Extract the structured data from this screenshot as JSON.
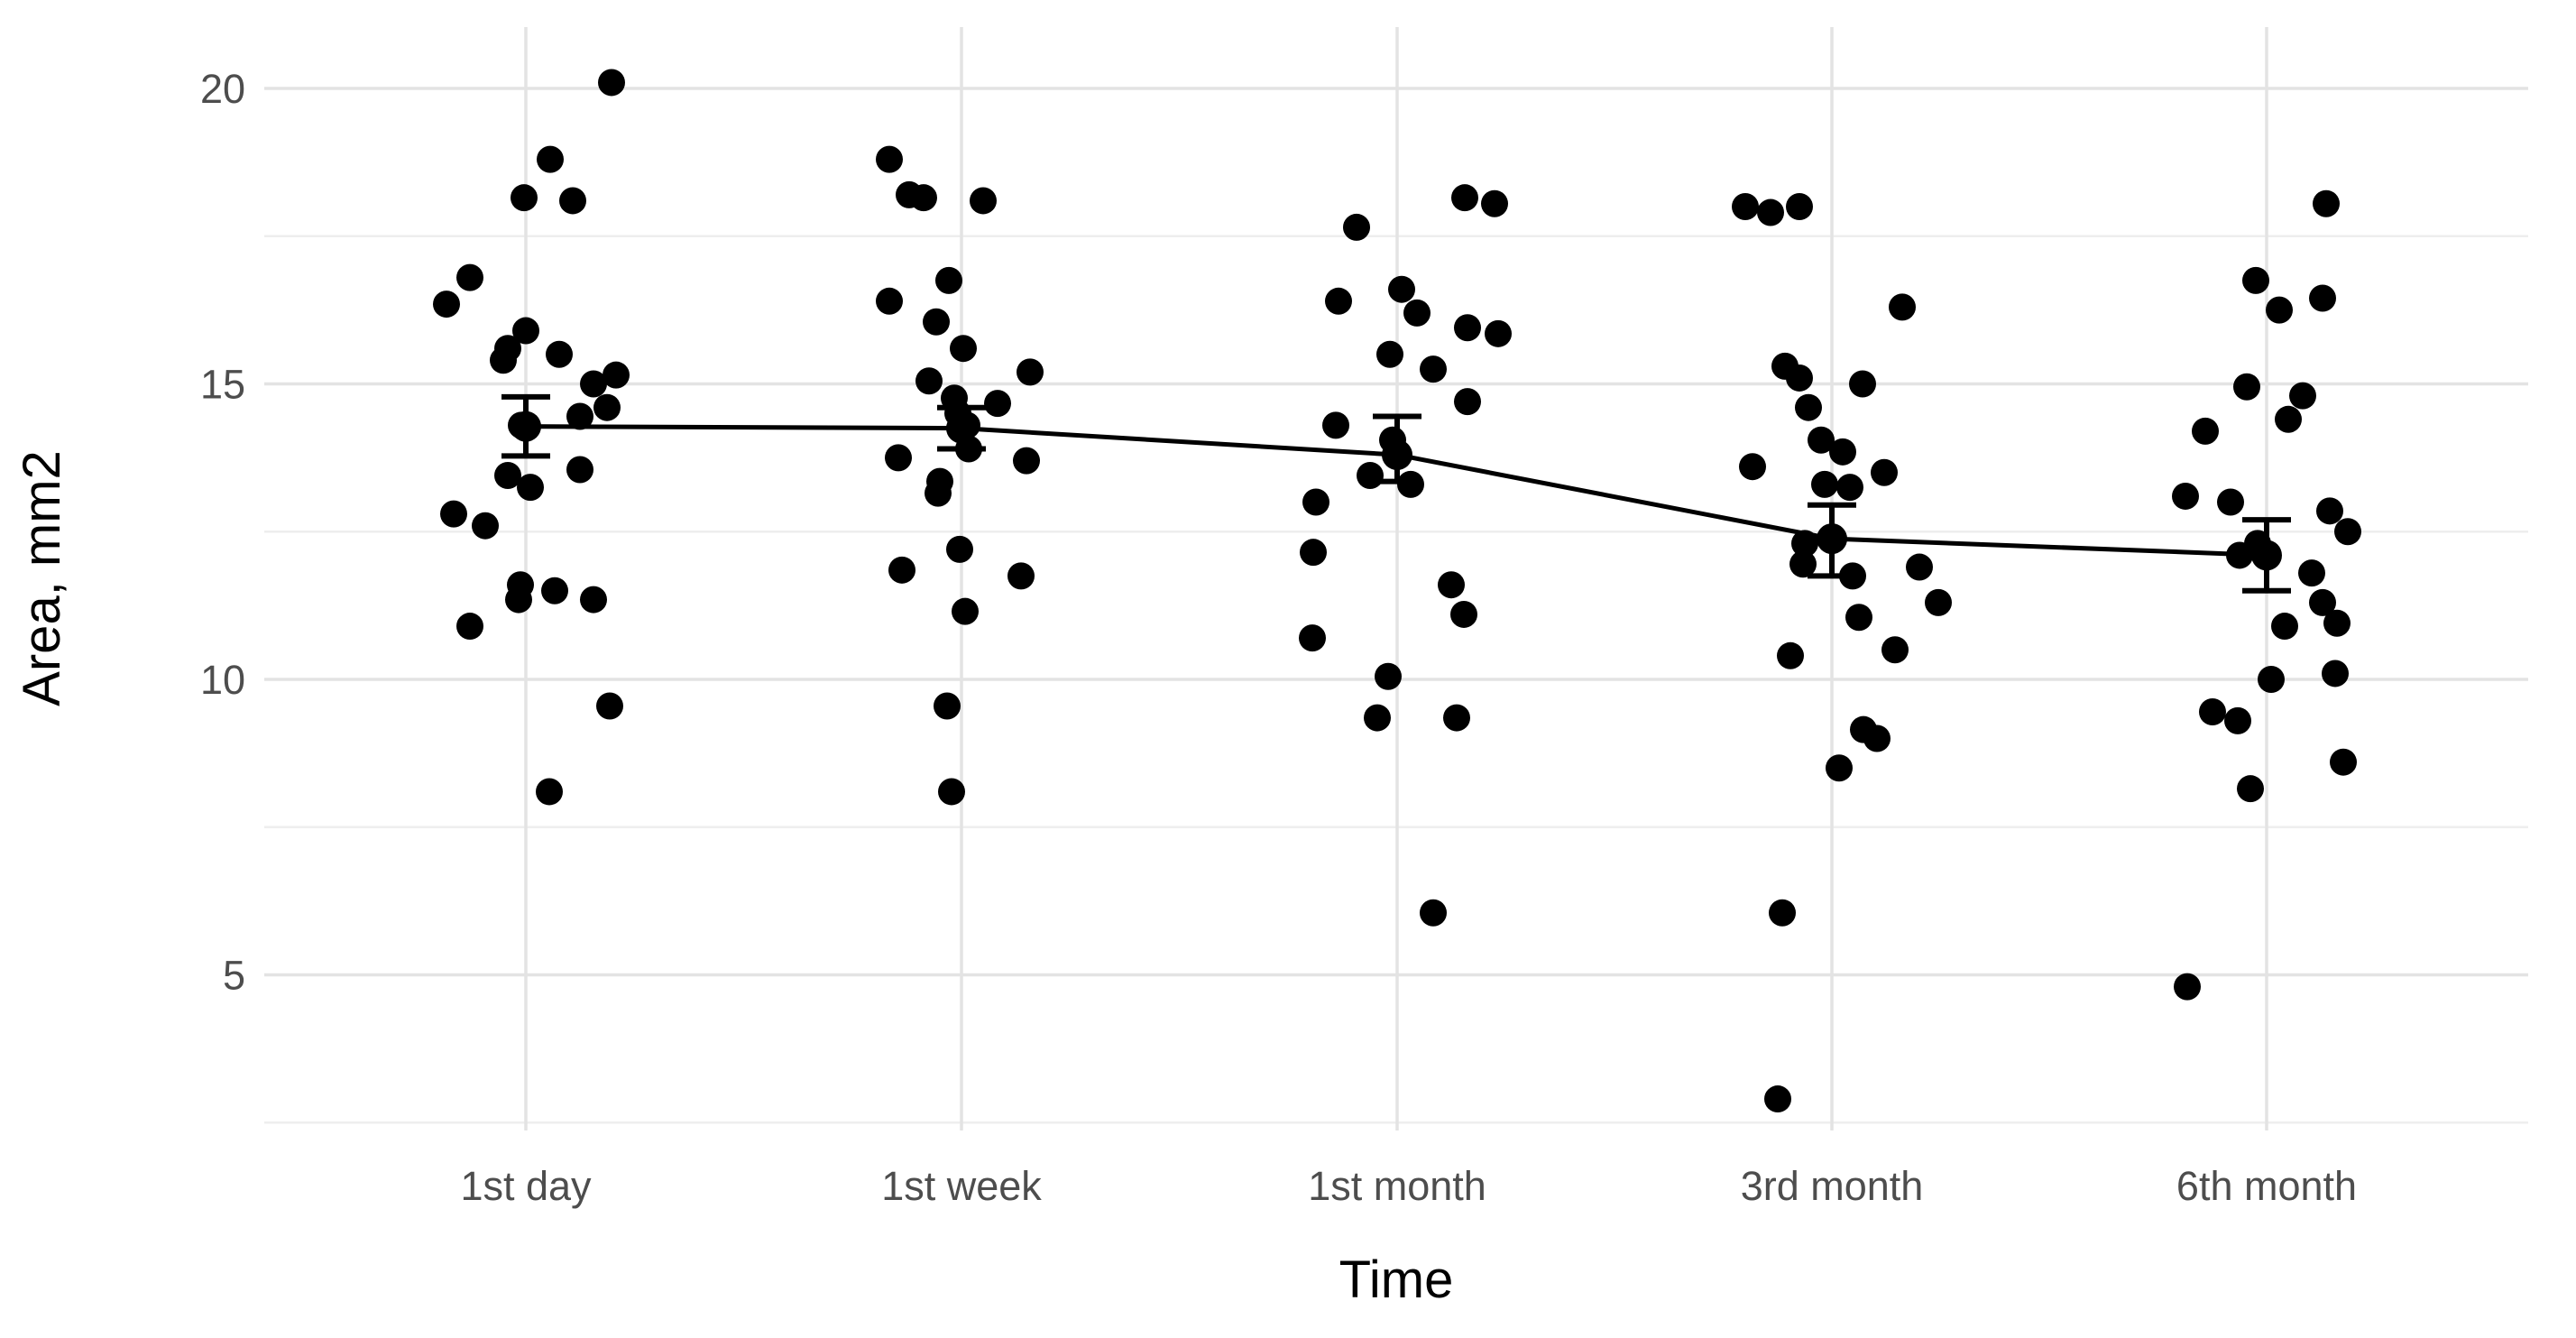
{
  "chart_data": {
    "type": "scatter",
    "subtype": "jittered-dotplot-with-mean-se-line",
    "title": "",
    "xlabel": "Time",
    "ylabel": "Area, mm2",
    "categories": [
      "1st day",
      "1st week",
      "1st month",
      "3rd month",
      "6th month"
    ],
    "y_axis": {
      "ticks": [
        5,
        10,
        15,
        20
      ],
      "minor_ticks": [
        2.5,
        7.5,
        12.5,
        17.5
      ],
      "domain": [
        2.3,
        21.05
      ]
    },
    "grid": {
      "major": true,
      "minor": true
    },
    "legend": "none",
    "colors": {
      "point": "#000000",
      "mean_line": "#000000",
      "grid_major": "#e3e3e3",
      "grid_minor": "#eeeeee",
      "tick_text": "#4d4d4d",
      "title_text": "#000000",
      "background": "#ffffff"
    },
    "summary": [
      {
        "category": "1st day",
        "mean": 14.28,
        "se_low": 13.78,
        "se_high": 14.78
      },
      {
        "category": "1st week",
        "mean": 14.25,
        "se_low": 13.9,
        "se_high": 14.6
      },
      {
        "category": "1st month",
        "mean": 13.8,
        "se_low": 13.35,
        "se_high": 14.45
      },
      {
        "category": "3rd month",
        "mean": 12.38,
        "se_low": 11.75,
        "se_high": 12.95
      },
      {
        "category": "6th month",
        "mean": 12.1,
        "se_low": 11.5,
        "se_high": 12.7
      }
    ],
    "series": [
      {
        "name": "1st day",
        "points": [
          [
            20.1,
            95
          ],
          [
            18.8,
            27
          ],
          [
            18.15,
            -2
          ],
          [
            18.1,
            52
          ],
          [
            16.8,
            -62
          ],
          [
            16.35,
            -88
          ],
          [
            15.9,
            0
          ],
          [
            15.6,
            -20
          ],
          [
            15.5,
            37
          ],
          [
            15.4,
            -25
          ],
          [
            15.15,
            100
          ],
          [
            15.0,
            75
          ],
          [
            14.6,
            90
          ],
          [
            14.45,
            60
          ],
          [
            14.3,
            -5
          ],
          [
            13.55,
            60
          ],
          [
            13.45,
            -20
          ],
          [
            13.25,
            5
          ],
          [
            12.8,
            -80
          ],
          [
            12.6,
            -45
          ],
          [
            11.6,
            -6
          ],
          [
            11.35,
            -8
          ],
          [
            11.5,
            32
          ],
          [
            11.35,
            75
          ],
          [
            10.9,
            -62
          ],
          [
            9.55,
            93
          ],
          [
            8.1,
            26
          ]
        ]
      },
      {
        "name": "1st week",
        "points": [
          [
            18.8,
            -80
          ],
          [
            18.2,
            -58
          ],
          [
            18.15,
            -42
          ],
          [
            18.1,
            24
          ],
          [
            16.75,
            -14
          ],
          [
            16.4,
            -80
          ],
          [
            16.05,
            -28
          ],
          [
            15.6,
            2
          ],
          [
            15.2,
            76
          ],
          [
            15.05,
            -36
          ],
          [
            14.76,
            -8
          ],
          [
            14.67,
            40
          ],
          [
            14.5,
            -4
          ],
          [
            14.3,
            6
          ],
          [
            13.9,
            8
          ],
          [
            13.75,
            -70
          ],
          [
            13.7,
            72
          ],
          [
            13.35,
            -24
          ],
          [
            13.15,
            -26
          ],
          [
            12.2,
            -2
          ],
          [
            11.85,
            -66
          ],
          [
            11.75,
            66
          ],
          [
            11.15,
            4
          ],
          [
            9.55,
            -16
          ],
          [
            8.1,
            -11
          ]
        ]
      },
      {
        "name": "1st month",
        "points": [
          [
            18.15,
            75
          ],
          [
            18.05,
            108
          ],
          [
            17.65,
            -45
          ],
          [
            16.6,
            5
          ],
          [
            16.4,
            -65
          ],
          [
            16.2,
            22
          ],
          [
            15.95,
            78
          ],
          [
            15.85,
            112
          ],
          [
            15.5,
            -8
          ],
          [
            15.25,
            40
          ],
          [
            14.7,
            78
          ],
          [
            14.3,
            -68
          ],
          [
            14.05,
            -5
          ],
          [
            13.45,
            -30
          ],
          [
            13.3,
            15
          ],
          [
            13.0,
            -90
          ],
          [
            12.15,
            -93
          ],
          [
            11.6,
            60
          ],
          [
            11.1,
            74
          ],
          [
            10.7,
            -94
          ],
          [
            10.05,
            -10
          ],
          [
            9.35,
            -22
          ],
          [
            9.35,
            66
          ],
          [
            6.05,
            40
          ]
        ]
      },
      {
        "name": "3rd month",
        "points": [
          [
            18.0,
            -96
          ],
          [
            17.9,
            -68
          ],
          [
            18.0,
            -36
          ],
          [
            16.3,
            78
          ],
          [
            15.3,
            -52
          ],
          [
            15.1,
            -36
          ],
          [
            15.0,
            34
          ],
          [
            14.6,
            -26
          ],
          [
            14.05,
            -12
          ],
          [
            13.85,
            12
          ],
          [
            13.6,
            -88
          ],
          [
            13.5,
            58
          ],
          [
            13.3,
            -8
          ],
          [
            13.25,
            20
          ],
          [
            12.3,
            -30
          ],
          [
            11.95,
            -32
          ],
          [
            11.9,
            97
          ],
          [
            11.75,
            23
          ],
          [
            11.3,
            118
          ],
          [
            11.05,
            30
          ],
          [
            10.5,
            70
          ],
          [
            10.4,
            -46
          ],
          [
            9.15,
            35
          ],
          [
            9.0,
            50
          ],
          [
            8.5,
            8
          ],
          [
            6.05,
            -55
          ],
          [
            2.9,
            -60
          ]
        ]
      },
      {
        "name": "6th month",
        "points": [
          [
            18.05,
            66
          ],
          [
            16.75,
            -12
          ],
          [
            16.45,
            62
          ],
          [
            16.25,
            14
          ],
          [
            14.95,
            -22
          ],
          [
            14.8,
            40
          ],
          [
            14.4,
            24
          ],
          [
            14.2,
            -68
          ],
          [
            13.1,
            -90
          ],
          [
            13.0,
            -40
          ],
          [
            12.85,
            70
          ],
          [
            12.5,
            90
          ],
          [
            12.3,
            -10
          ],
          [
            12.1,
            -30
          ],
          [
            11.8,
            50
          ],
          [
            11.3,
            62
          ],
          [
            10.95,
            78
          ],
          [
            10.9,
            20
          ],
          [
            10.1,
            76
          ],
          [
            10.0,
            5
          ],
          [
            9.45,
            -60
          ],
          [
            9.3,
            -32
          ],
          [
            8.6,
            85
          ],
          [
            8.15,
            -18
          ],
          [
            4.8,
            -88
          ]
        ]
      }
    ]
  }
}
